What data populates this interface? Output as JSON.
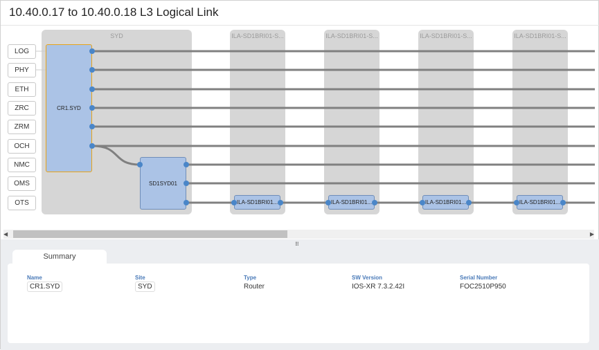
{
  "title": "10.40.0.17 to 10.40.0.18 L3 Logical Link",
  "layers": [
    "LOG",
    "PHY",
    "ETH",
    "ZRC",
    "ZRM",
    "OCH",
    "NMC",
    "OMS",
    "OTS"
  ],
  "columns": [
    {
      "label": "SYD"
    },
    {
      "label": "ILA-SD1BRI01-S..."
    },
    {
      "label": "ILA-SD1BRI01-S..."
    },
    {
      "label": "ILA-SD1BRI01-S..."
    },
    {
      "label": "ILA-SD1BRI01-S..."
    }
  ],
  "nodes": {
    "cr1": "CR1.SYD",
    "sd1": "SD1SYD01",
    "ila": [
      "ILA-SD1BRI01...",
      "ILA-SD1BRI01...",
      "ILA-SD1BRI01...",
      "ILA-SD1BRI01..."
    ]
  },
  "colors": {
    "node_fill": "#abc3e6",
    "selected_border": "#e8a317",
    "port": "#4a86c8",
    "link": "#808080"
  },
  "tabs": [
    "Summary"
  ],
  "summary": {
    "name_label": "Name",
    "name": "CR1.SYD",
    "site_label": "Site",
    "site": "SYD",
    "type_label": "Type",
    "type": "Router",
    "sw_label": "SW Version",
    "sw": "IOS-XR 7.3.2.42I",
    "serial_label": "Serial Number",
    "serial": "FOC2510P950"
  }
}
